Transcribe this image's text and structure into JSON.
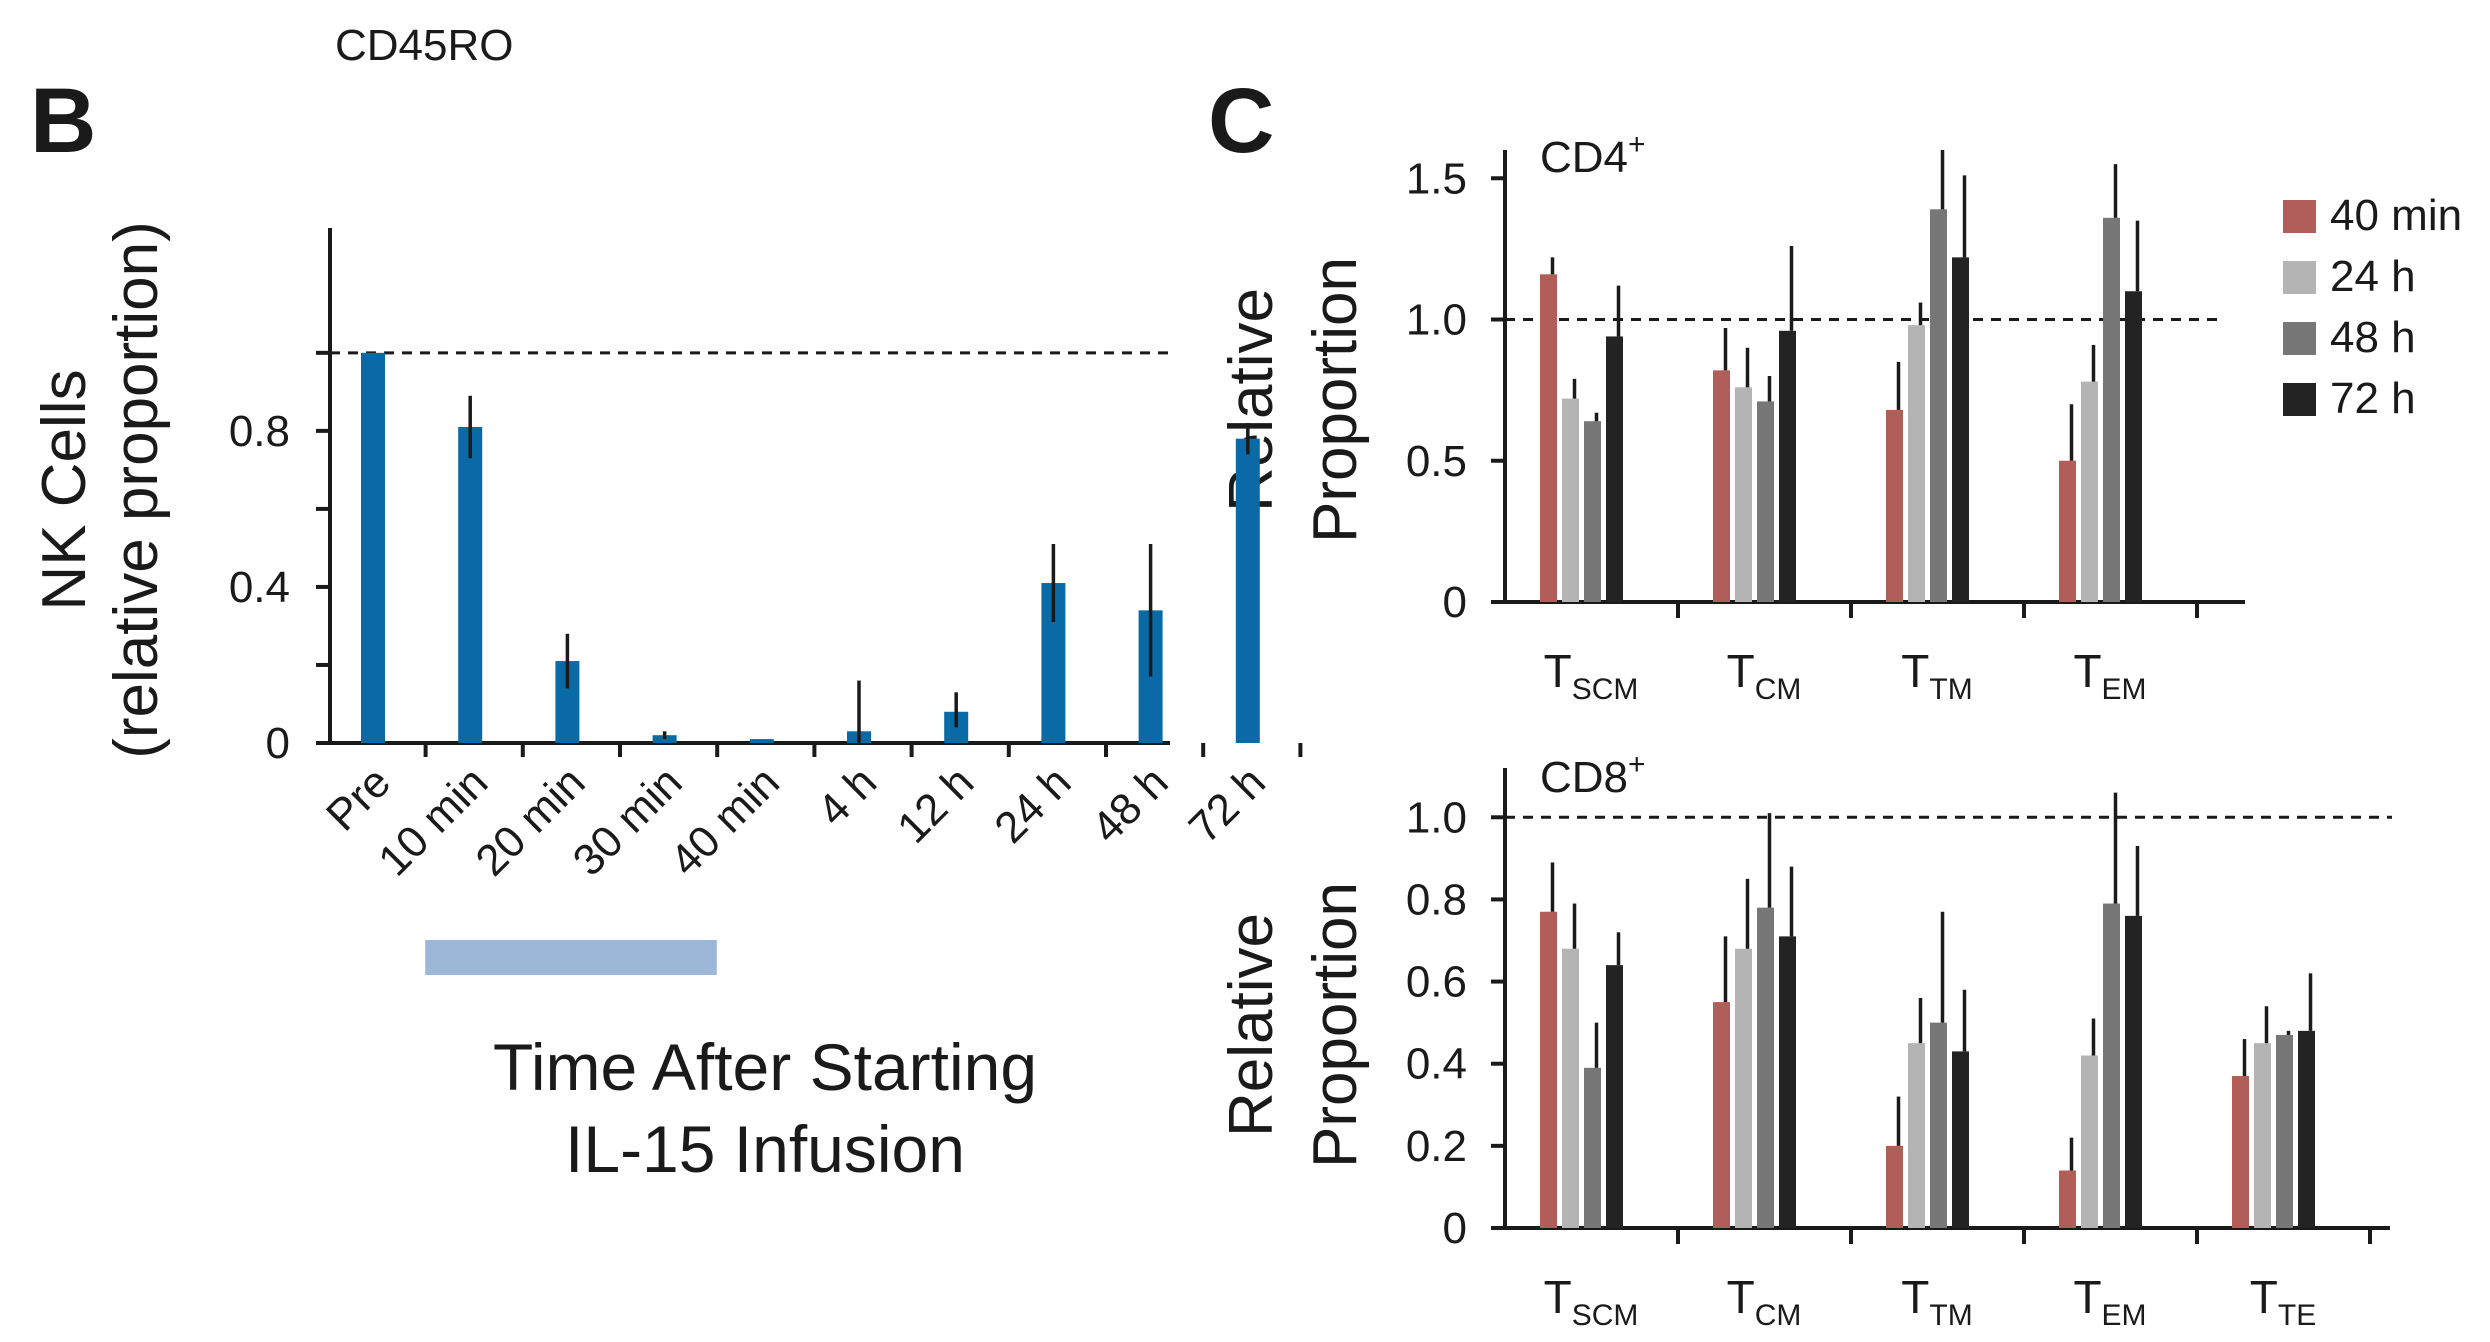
{
  "header": {
    "top_label": "CD45RO"
  },
  "panels": {
    "b": "B",
    "c": "C"
  },
  "chart_data": [
    {
      "id": "B",
      "type": "bar",
      "title": "",
      "ylabel_line1": "NK Cells",
      "ylabel_line2": "(relative proportion)",
      "xlabel_line1": "Time After Starting",
      "xlabel_line2": "IL-15 Infusion",
      "categories": [
        "Pre",
        "10 min",
        "20 min",
        "30 min",
        "40 min",
        "4 h",
        "12 h",
        "24 h",
        "48 h",
        "72 h"
      ],
      "values": [
        1.0,
        0.81,
        0.21,
        0.02,
        0.01,
        0.03,
        0.08,
        0.41,
        0.34,
        0.78
      ],
      "error_upper": [
        1.0,
        0.89,
        0.28,
        0.03,
        0.01,
        0.16,
        0.13,
        0.51,
        0.51,
        0.82
      ],
      "error_lower": [
        1.0,
        0.73,
        0.14,
        0.01,
        0.01,
        0.0,
        0.04,
        0.31,
        0.17,
        0.74
      ],
      "yticks": [
        "0",
        "0.4",
        "0.8"
      ],
      "ylim": [
        0,
        1.32
      ],
      "reference_line": 1.0,
      "infusion_bar": {
        "from": "10 min",
        "to": "40 min",
        "color": "#9db7d8"
      },
      "color": "#0a6aa6"
    },
    {
      "id": "C-CD4",
      "type": "bar",
      "title": "CD4",
      "title_sup": "+",
      "ylabel_line1": "Relative",
      "ylabel_line2": "Proportion",
      "categories": [
        {
          "main": "T",
          "sub": "SCM"
        },
        {
          "main": "T",
          "sub": "CM"
        },
        {
          "main": "T",
          "sub": "TM"
        },
        {
          "main": "T",
          "sub": "EM"
        }
      ],
      "yticks": [
        "0",
        "0.5",
        "1.0",
        "1.5"
      ],
      "ylim": [
        0,
        1.6
      ],
      "reference_line": 1.0,
      "series": [
        {
          "name": "40 min",
          "color": "#b25e58",
          "values": [
            1.16,
            0.82,
            0.68,
            0.5
          ],
          "err_top": [
            1.22,
            0.97,
            0.85,
            0.7
          ]
        },
        {
          "name": "24 h",
          "color": "#b4b4b4",
          "values": [
            0.72,
            0.76,
            0.98,
            0.78
          ],
          "err_top": [
            0.79,
            0.9,
            1.06,
            0.91
          ]
        },
        {
          "name": "48 h",
          "color": "#777777",
          "values": [
            0.64,
            0.71,
            1.39,
            1.36
          ],
          "err_top": [
            0.67,
            0.8,
            1.6,
            1.55
          ]
        },
        {
          "name": "72 h",
          "color": "#232323",
          "values": [
            0.94,
            0.96,
            1.22,
            1.1
          ],
          "err_top": [
            1.12,
            1.26,
            1.51,
            1.35
          ]
        }
      ]
    },
    {
      "id": "C-CD8",
      "type": "bar",
      "title": "CD8",
      "title_sup": "+",
      "ylabel_line1": "Relative",
      "ylabel_line2": "Proportion",
      "categories": [
        {
          "main": "T",
          "sub": "SCM"
        },
        {
          "main": "T",
          "sub": "CM"
        },
        {
          "main": "T",
          "sub": "TM"
        },
        {
          "main": "T",
          "sub": "EM"
        },
        {
          "main": "T",
          "sub": "TE"
        }
      ],
      "yticks": [
        "0",
        "0.2",
        "0.4",
        "0.6",
        "0.8",
        "1.0"
      ],
      "ylim": [
        0,
        1.12
      ],
      "reference_line": 1.0,
      "series": [
        {
          "name": "40 min",
          "color": "#b25e58",
          "values": [
            0.77,
            0.55,
            0.2,
            0.14,
            0.37
          ],
          "err_top": [
            0.89,
            0.71,
            0.32,
            0.22,
            0.46
          ]
        },
        {
          "name": "24 h",
          "color": "#b4b4b4",
          "values": [
            0.68,
            0.68,
            0.45,
            0.42,
            0.45
          ],
          "err_top": [
            0.79,
            0.85,
            0.56,
            0.51,
            0.54
          ]
        },
        {
          "name": "48 h",
          "color": "#777777",
          "values": [
            0.39,
            0.78,
            0.5,
            0.79,
            0.47
          ],
          "err_top": [
            0.5,
            1.01,
            0.77,
            1.06,
            0.48
          ]
        },
        {
          "name": "72 h",
          "color": "#232323",
          "values": [
            0.64,
            0.71,
            0.43,
            0.76,
            0.48
          ],
          "err_top": [
            0.72,
            0.88,
            0.58,
            0.93,
            0.62
          ]
        }
      ]
    }
  ],
  "legend": [
    {
      "label": "40 min",
      "color": "#b25e58"
    },
    {
      "label": "24 h",
      "color": "#b4b4b4"
    },
    {
      "label": "48 h",
      "color": "#777777"
    },
    {
      "label": "72 h",
      "color": "#232323"
    }
  ]
}
